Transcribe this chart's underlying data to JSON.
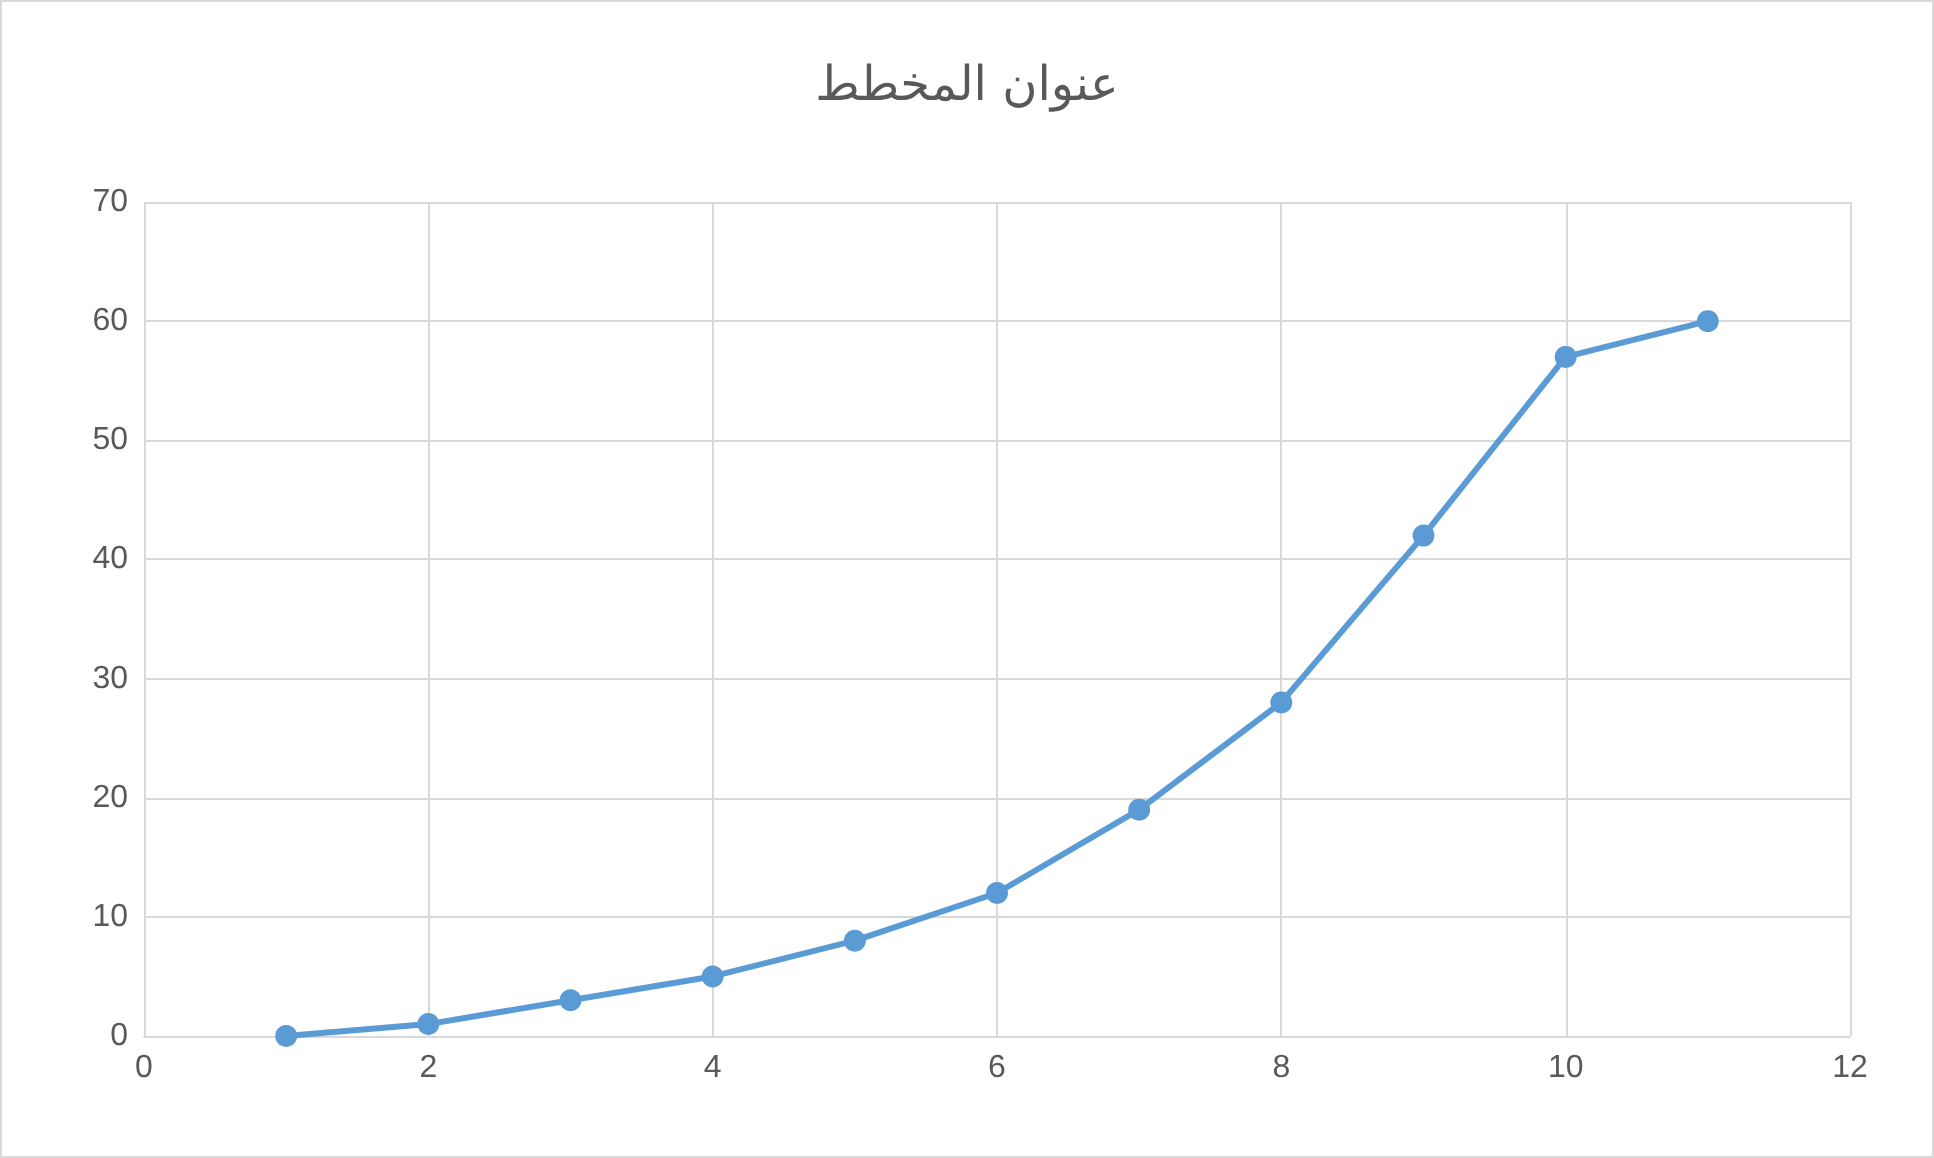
{
  "chart_data": {
    "type": "line",
    "title": "عنوان المخطط",
    "x": [
      1,
      2,
      3,
      4,
      5,
      6,
      7,
      8,
      9,
      10,
      11
    ],
    "series": [
      {
        "color": "#5b9bd5",
        "values": [
          0,
          1,
          3,
          5,
          8,
          12,
          19,
          28,
          42,
          57,
          60
        ]
      }
    ],
    "xlim": [
      0,
      12
    ],
    "xticks": [
      0,
      2,
      4,
      6,
      8,
      10,
      12
    ],
    "ylim": [
      0,
      70
    ],
    "yticks": [
      0,
      10,
      20,
      30,
      40,
      50,
      60,
      70
    ],
    "grid": true,
    "marker": "circle",
    "line_style": "solid"
  }
}
